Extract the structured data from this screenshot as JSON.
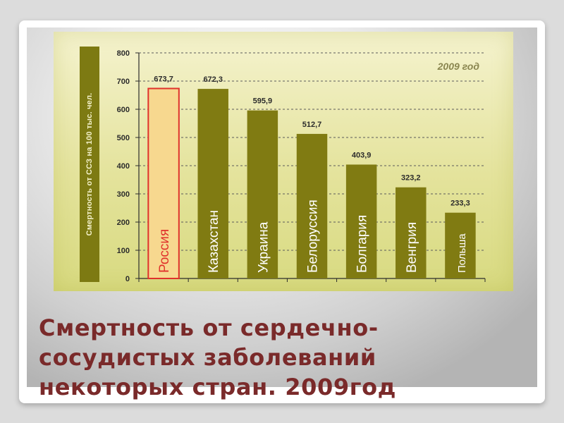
{
  "slide": {
    "title_lines": [
      "Смертность от сердечно-",
      "сосудистых заболеваний",
      "некоторых стран. 2009год"
    ]
  },
  "chart_data": {
    "type": "bar",
    "title": "2009 год",
    "xlabel": "",
    "ylabel": "Смертность от ССЗ на 100 тыс. чел.",
    "ylim": [
      0,
      800
    ],
    "yticks": [
      0,
      100,
      200,
      300,
      400,
      500,
      600,
      700,
      800
    ],
    "grid": true,
    "categories": [
      "Россия",
      "Казахстан",
      "Украина",
      "Белоруссия",
      "Болгария",
      "Венгрия",
      "Польша"
    ],
    "values": [
      673.7,
      672.3,
      595.9,
      512.7,
      403.9,
      323.2,
      233.3
    ],
    "value_labels": [
      "673,7",
      "672,3",
      "595,9",
      "512,7",
      "403,9",
      "323,2",
      "233,3"
    ],
    "highlight_category": "Россия",
    "colors": {
      "bar": "#807b12",
      "highlight_bar": "#f7d88f",
      "highlight_outline": "#e0322c",
      "highlight_text": "#e0322c",
      "bar_text": "#ffffff",
      "title": "#8a8650",
      "axis": "#2b2b2b",
      "grid": "#5a5a5a"
    }
  }
}
